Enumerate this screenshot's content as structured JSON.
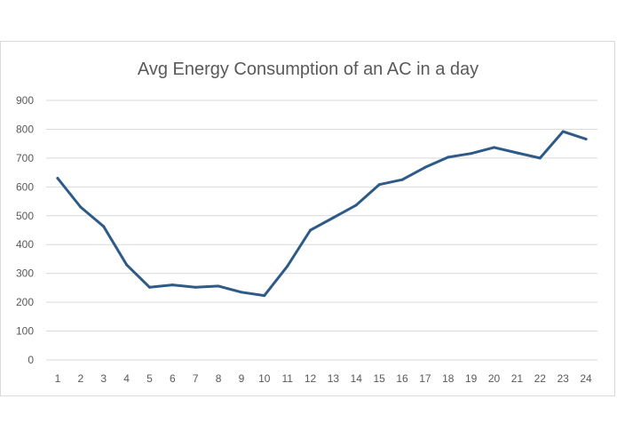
{
  "chart_data": {
    "type": "line",
    "title": "Avg Energy Consumption of an AC in a  day",
    "xlabel": "",
    "ylabel": "",
    "x": [
      1,
      2,
      3,
      4,
      5,
      6,
      7,
      8,
      9,
      10,
      11,
      12,
      13,
      14,
      15,
      16,
      17,
      18,
      19,
      20,
      21,
      22,
      23,
      24
    ],
    "series": [
      {
        "values": [
          630,
          530,
          463,
          330,
          252,
          260,
          252,
          256,
          235,
          223,
          325,
          450,
          493,
          537,
          608,
          625,
          668,
          703,
          716,
          737,
          718,
          700,
          792,
          766
        ]
      }
    ],
    "ylim": [
      0,
      900
    ],
    "yticks": [
      0,
      100,
      200,
      300,
      400,
      500,
      600,
      700,
      800,
      900
    ],
    "grid": true,
    "legend": "none",
    "colors": {
      "line": "#2e5a88",
      "grid": "#d9d9d9",
      "text": "#595959"
    }
  }
}
